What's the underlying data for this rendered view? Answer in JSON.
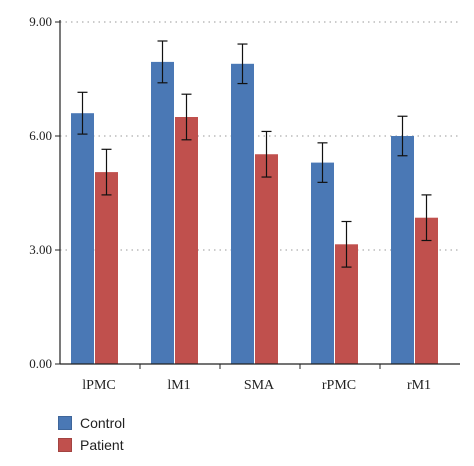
{
  "chart_data": {
    "type": "bar",
    "categories": [
      "lPMC",
      "lM1",
      "SMA",
      "rPMC",
      "rM1"
    ],
    "series": [
      {
        "name": "Control",
        "color": "#4a78b5",
        "values": [
          6.6,
          7.95,
          7.9,
          5.3,
          6.0
        ],
        "errors": [
          0.55,
          0.55,
          0.52,
          0.52,
          0.52
        ]
      },
      {
        "name": "Patient",
        "color": "#c0504d",
        "values": [
          5.05,
          6.5,
          5.52,
          3.15,
          3.85
        ],
        "errors": [
          0.6,
          0.6,
          0.6,
          0.6,
          0.6
        ]
      }
    ],
    "ylim": [
      0,
      9
    ],
    "yticks": [
      0,
      3,
      6,
      9
    ],
    "ytick_labels": [
      "0.00",
      "3.00",
      "6.00",
      "9.00"
    ],
    "grid": "dotted horizontal",
    "legend_position": "bottom-left",
    "title": "",
    "xlabel": "",
    "ylabel": ""
  }
}
